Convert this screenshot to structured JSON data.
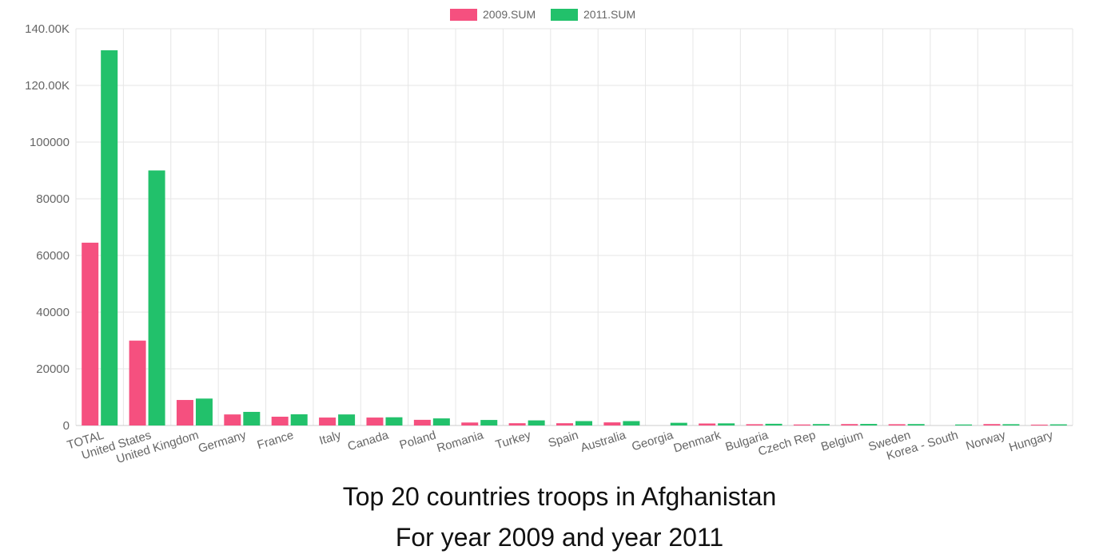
{
  "captions": {
    "line1": "Top 20 countries troops in Afghanistan",
    "line2": "For year 2009 and year 2011"
  },
  "colors": {
    "series_2009": "#f5507f",
    "series_2011": "#22c16b",
    "grid": "#e6e6e6",
    "tick_text": "#666666"
  },
  "chart_data": {
    "type": "bar",
    "title": "",
    "xlabel": "",
    "ylabel": "",
    "ylim": [
      0,
      140000
    ],
    "y_ticks": [
      {
        "value": 0,
        "label": "0"
      },
      {
        "value": 20000,
        "label": "20000"
      },
      {
        "value": 40000,
        "label": "40000"
      },
      {
        "value": 60000,
        "label": "60000"
      },
      {
        "value": 80000,
        "label": "80000"
      },
      {
        "value": 100000,
        "label": "100000"
      },
      {
        "value": 120000,
        "label": "120.00K"
      },
      {
        "value": 140000,
        "label": "140.00K"
      }
    ],
    "legend_position": "top-center",
    "grid": true,
    "categories": [
      "TOTAL",
      "United States",
      "United Kingdom",
      "Germany",
      "France",
      "Italy",
      "Canada",
      "Poland",
      "Romania",
      "Turkey",
      "Spain",
      "Australia",
      "Georgia",
      "Denmark",
      "Bulgaria",
      "Czech Rep",
      "Belgium",
      "Sweden",
      "Korea - South",
      "Norway",
      "Hungary"
    ],
    "series": [
      {
        "name": "2009.SUM",
        "values": [
          64500,
          29950,
          9000,
          3900,
          3100,
          2800,
          2800,
          2000,
          1050,
          800,
          800,
          1100,
          0,
          700,
          450,
          350,
          500,
          450,
          0,
          500,
          300
        ]
      },
      {
        "name": "2011.SUM",
        "values": [
          132400,
          90000,
          9500,
          4800,
          3950,
          3900,
          2900,
          2500,
          1950,
          1800,
          1550,
          1550,
          950,
          750,
          600,
          500,
          550,
          500,
          350,
          450,
          400
        ]
      }
    ]
  }
}
